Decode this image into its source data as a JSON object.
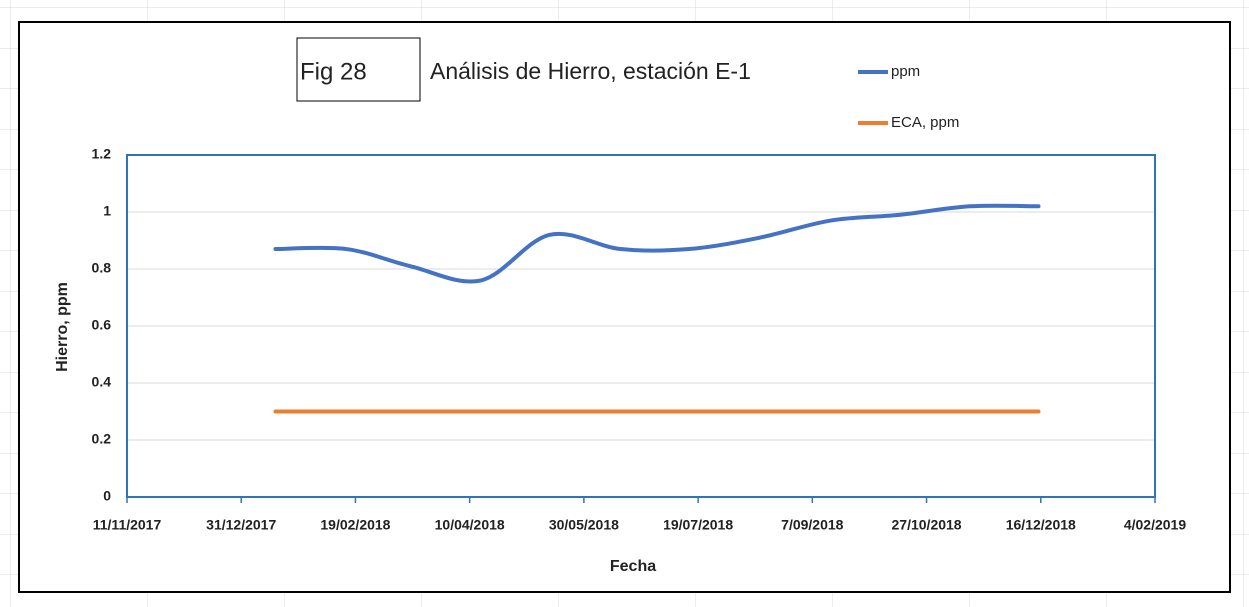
{
  "chart_data": {
    "type": "line",
    "label": "Fig 28",
    "title": "Análisis de Hierro, estación E-1",
    "x_label": "Fecha",
    "y_label": "Hierro, ppm",
    "x": [
      "2018-01-15",
      "2018-02-15",
      "2018-03-15",
      "2018-04-15",
      "2018-05-15",
      "2018-06-15",
      "2018-07-15",
      "2018-08-15",
      "2018-09-15",
      "2018-10-15",
      "2018-11-15",
      "2018-12-15"
    ],
    "series": [
      {
        "name": "ppm",
        "color": "#4472c4",
        "values": [
          0.87,
          0.87,
          0.81,
          0.76,
          0.92,
          0.87,
          0.87,
          0.91,
          0.97,
          0.99,
          1.02,
          1.02
        ]
      },
      {
        "name": "ECA, ppm",
        "color": "#ed7d31",
        "values": [
          0.3,
          0.3,
          0.3,
          0.3,
          0.3,
          0.3,
          0.3,
          0.3,
          0.3,
          0.3,
          0.3,
          0.3
        ]
      }
    ],
    "xlim": [
      "2017-11-11",
      "2019-02-04"
    ],
    "xticks": [
      {
        "value": "2017-11-11",
        "label": "11/11/2017"
      },
      {
        "value": "2017-12-31",
        "label": "31/12/2017"
      },
      {
        "value": "2018-02-19",
        "label": "19/02/2018"
      },
      {
        "value": "2018-04-10",
        "label": "10/04/2018"
      },
      {
        "value": "2018-05-30",
        "label": "30/05/2018"
      },
      {
        "value": "2018-07-19",
        "label": "19/07/2018"
      },
      {
        "value": "2018-09-07",
        "label": "7/09/2018"
      },
      {
        "value": "2018-10-27",
        "label": "27/10/2018"
      },
      {
        "value": "2018-12-16",
        "label": "16/12/2018"
      },
      {
        "value": "2019-02-04",
        "label": "4/02/2019"
      }
    ],
    "ylim": [
      0,
      1.2
    ],
    "yticks": [
      0,
      0.2,
      0.4,
      0.6,
      0.8,
      1,
      1.2
    ],
    "grid": true,
    "smooth": true
  }
}
